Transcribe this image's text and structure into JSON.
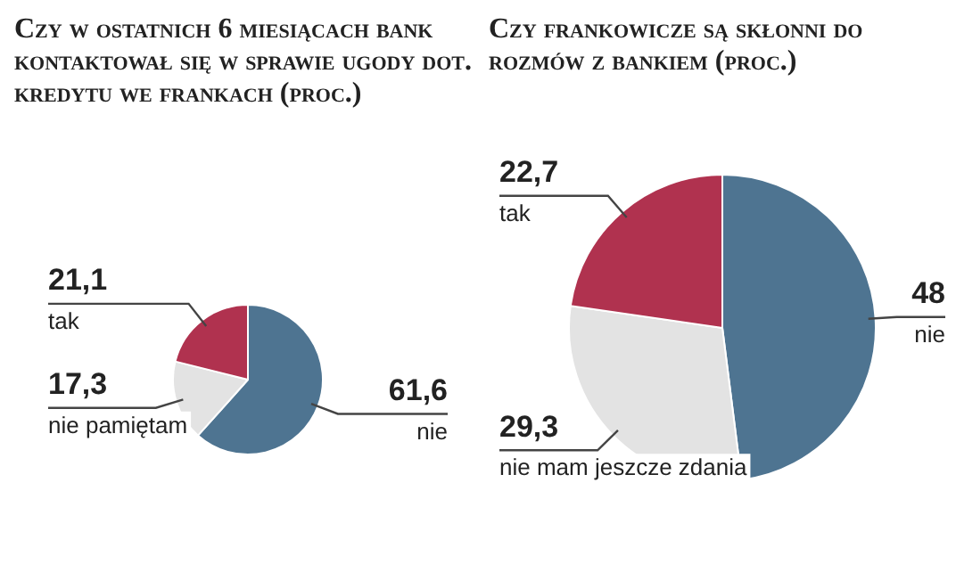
{
  "chart_data": [
    {
      "type": "pie",
      "title": "Czy w ostatnich 6 miesiącach bank kontaktował się w sprawie ugody dot. kredytu we frankach (proc.)",
      "categories": [
        "nie",
        "nie pamiętam",
        "tak"
      ],
      "values": [
        61.6,
        17.3,
        21.1
      ],
      "colors": [
        "#4e7491",
        "#e3e3e3",
        "#b0324f"
      ],
      "value_labels": [
        "61,6",
        "17,3",
        "21,1"
      ],
      "legend": false
    },
    {
      "type": "pie",
      "title": "Czy frankowicze są skłonni do rozmów z bankiem (proc.)",
      "categories": [
        "nie",
        "nie mam jeszcze zdania",
        "tak"
      ],
      "values": [
        48,
        29.3,
        22.7
      ],
      "colors": [
        "#4e7491",
        "#e3e3e3",
        "#b0324f"
      ],
      "value_labels": [
        "48",
        "29,3",
        "22,7"
      ],
      "legend": false
    }
  ]
}
